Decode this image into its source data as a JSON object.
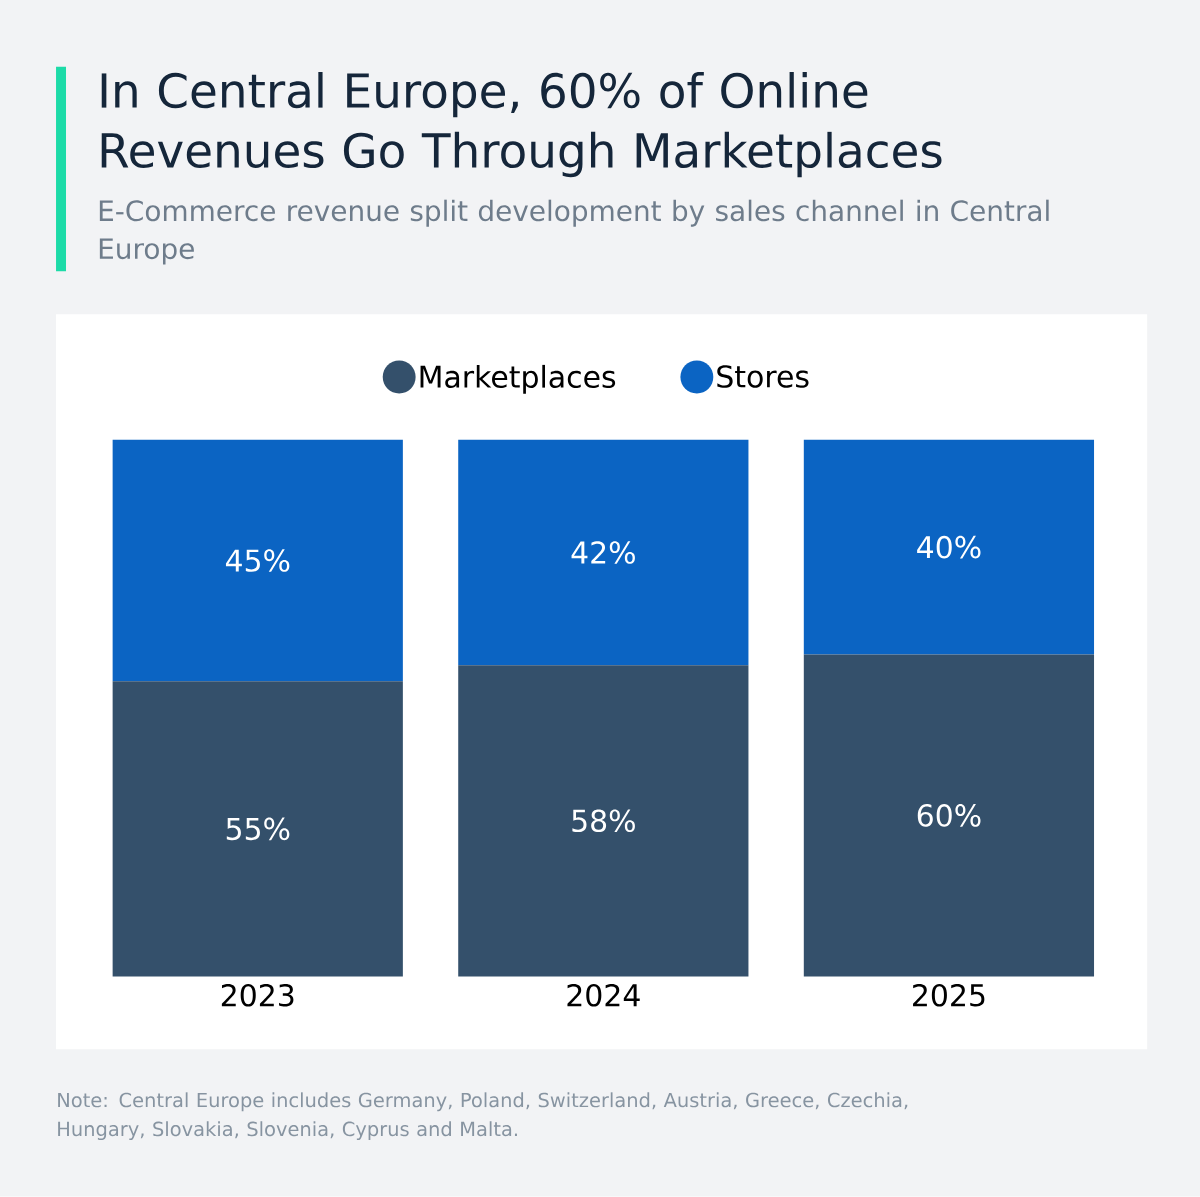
{
  "chart_data": {
    "type": "bar",
    "title": "In Central Europe, 60% of Online Revenues Go Through Marketplaces",
    "subtitle": "E-Commerce revenue split development by sales channel in Central Europe",
    "categories": [
      "2023",
      "2024",
      "2025"
    ],
    "series": [
      {
        "name": "Marketplaces",
        "color": "#34506b",
        "values": [
          55,
          58,
          60
        ],
        "value_labels": [
          "55%",
          "58%",
          "60%"
        ]
      },
      {
        "name": "Stores",
        "color": "#0b64c3",
        "values": [
          45,
          42,
          40
        ],
        "value_labels": [
          "45%",
          "42%",
          "40%"
        ]
      }
    ],
    "stacked": true,
    "ylim": [
      0,
      100
    ],
    "legend": "top",
    "annotations": [
      "Note: Central Europe includes Germany, Poland, Switzerland, Austria, Greece, Czechia, Hungary, Slovakia, Slovenia, Cyprus and Malta."
    ]
  }
}
